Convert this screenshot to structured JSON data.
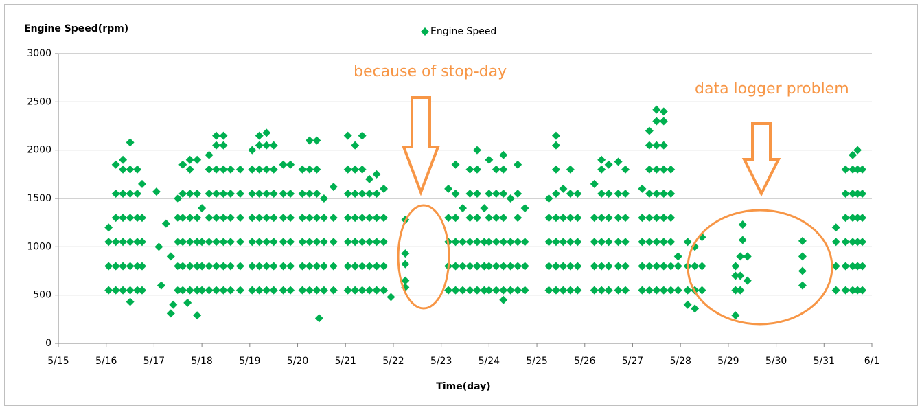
{
  "chart_data": {
    "type": "scatter",
    "y_label": "Engine Speed(rpm)",
    "x_label": "Time(day)",
    "annotations": [
      "because of stop-day",
      "data logger problem"
    ],
    "legend": "top",
    "grid": true,
    "xlim": [
      0,
      17
    ],
    "xticks": [
      {
        "value": 0,
        "label": "5/15"
      },
      {
        "value": 1,
        "label": "5/16"
      },
      {
        "value": 2,
        "label": "5/17"
      },
      {
        "value": 3,
        "label": "5/18"
      },
      {
        "value": 4,
        "label": "5/19"
      },
      {
        "value": 5,
        "label": "5/20"
      },
      {
        "value": 6,
        "label": "5/21"
      },
      {
        "value": 7,
        "label": "5/22"
      },
      {
        "value": 8,
        "label": "5/23"
      },
      {
        "value": 9,
        "label": "5/24"
      },
      {
        "value": 10,
        "label": "5/25"
      },
      {
        "value": 11,
        "label": "5/26"
      },
      {
        "value": 12,
        "label": "5/27"
      },
      {
        "value": 13,
        "label": "5/28"
      },
      {
        "value": 14,
        "label": "5/29"
      },
      {
        "value": 15,
        "label": "5/30"
      },
      {
        "value": 16,
        "label": "5/31"
      },
      {
        "value": 17,
        "label": "6/1"
      }
    ],
    "ylim": [
      0,
      3000
    ],
    "yticks": [
      0,
      500,
      1000,
      1500,
      2000,
      2500,
      3000
    ],
    "x": [
      1.05,
      1.05,
      1.05,
      1.05,
      1.2,
      1.2,
      1.2,
      1.2,
      1.2,
      1.2,
      1.35,
      1.35,
      1.35,
      1.35,
      1.35,
      1.35,
      1.35,
      1.5,
      1.5,
      1.5,
      1.5,
      1.5,
      1.5,
      1.5,
      1.5,
      1.65,
      1.65,
      1.65,
      1.65,
      1.65,
      1.65,
      1.75,
      1.75,
      1.75,
      1.75,
      1.75,
      2.05,
      2.1,
      2.25,
      2.15,
      2.35,
      2.4,
      2.35,
      2.7,
      2.9,
      2.5,
      2.5,
      2.5,
      2.5,
      2.5,
      2.6,
      2.6,
      2.6,
      2.6,
      2.6,
      2.6,
      2.75,
      2.75,
      2.75,
      2.75,
      2.75,
      2.75,
      2.75,
      2.9,
      2.9,
      2.9,
      2.9,
      2.9,
      2.9,
      3.0,
      3.0,
      3.0,
      3.0,
      3.15,
      3.15,
      3.15,
      3.15,
      3.15,
      3.15,
      3.15,
      3.3,
      3.3,
      3.3,
      3.3,
      3.3,
      3.3,
      3.3,
      3.3,
      3.45,
      3.45,
      3.45,
      3.45,
      3.45,
      3.45,
      3.45,
      3.45,
      3.6,
      3.6,
      3.6,
      3.6,
      3.6,
      3.6,
      3.8,
      3.8,
      3.8,
      3.8,
      3.8,
      3.8,
      4.05,
      4.05,
      4.05,
      4.05,
      4.05,
      4.05,
      4.05,
      4.2,
      4.2,
      4.2,
      4.2,
      4.2,
      4.2,
      4.2,
      4.2,
      4.35,
      4.35,
      4.35,
      4.35,
      4.35,
      4.35,
      4.35,
      4.35,
      4.5,
      4.5,
      4.5,
      4.5,
      4.5,
      4.5,
      4.5,
      4.7,
      4.7,
      4.7,
      4.7,
      4.7,
      4.7,
      4.85,
      4.85,
      4.85,
      4.85,
      4.85,
      4.85,
      5.1,
      5.1,
      5.1,
      5.1,
      5.1,
      5.1,
      5.25,
      5.25,
      5.25,
      5.25,
      5.25,
      5.25,
      5.25,
      5.4,
      5.4,
      5.4,
      5.4,
      5.4,
      5.4,
      5.4,
      5.45,
      5.55,
      5.55,
      5.55,
      5.55,
      5.55,
      5.75,
      5.75,
      5.75,
      5.75,
      5.75,
      6.05,
      6.05,
      6.05,
      6.05,
      6.05,
      6.05,
      6.05,
      6.2,
      6.2,
      6.2,
      6.2,
      6.2,
      6.2,
      6.2,
      6.35,
      6.35,
      6.35,
      6.35,
      6.35,
      6.35,
      6.35,
      6.5,
      6.5,
      6.5,
      6.5,
      6.5,
      6.5,
      6.65,
      6.65,
      6.65,
      6.65,
      6.65,
      6.65,
      6.8,
      6.8,
      6.8,
      6.8,
      6.8,
      6.95,
      7.25,
      7.25,
      7.25,
      7.25,
      7.25,
      8.15,
      8.15,
      8.15,
      8.15,
      8.15,
      8.3,
      8.3,
      8.3,
      8.3,
      8.3,
      8.3,
      8.45,
      8.45,
      8.45,
      8.45,
      8.6,
      8.6,
      8.6,
      8.6,
      8.6,
      8.6,
      8.75,
      8.75,
      8.75,
      8.75,
      8.75,
      8.75,
      8.75,
      8.9,
      8.9,
      8.9,
      8.9,
      9.0,
      9.0,
      9.0,
      9.0,
      9.0,
      9.0,
      9.15,
      9.15,
      9.15,
      9.15,
      9.15,
      9.15,
      9.3,
      9.3,
      9.3,
      9.3,
      9.3,
      9.3,
      9.3,
      9.3,
      9.45,
      9.45,
      9.45,
      9.45,
      9.6,
      9.6,
      9.6,
      9.6,
      9.6,
      9.6,
      9.75,
      9.75,
      9.75,
      9.75,
      10.25,
      10.25,
      10.25,
      10.25,
      10.25,
      10.4,
      10.4,
      10.4,
      10.4,
      10.4,
      10.4,
      10.4,
      10.4,
      10.55,
      10.55,
      10.55,
      10.55,
      10.55,
      10.7,
      10.7,
      10.7,
      10.7,
      10.7,
      10.7,
      10.85,
      10.85,
      10.85,
      10.85,
      10.85,
      11.2,
      11.2,
      11.2,
      11.2,
      11.2,
      11.35,
      11.35,
      11.35,
      11.35,
      11.35,
      11.35,
      11.35,
      11.5,
      11.5,
      11.5,
      11.5,
      11.5,
      11.5,
      11.7,
      11.7,
      11.7,
      11.7,
      11.7,
      11.7,
      11.85,
      11.85,
      11.85,
      11.85,
      11.85,
      11.85,
      12.2,
      12.2,
      12.2,
      12.2,
      12.2,
      12.35,
      12.35,
      12.35,
      12.35,
      12.35,
      12.35,
      12.35,
      12.35,
      12.5,
      12.5,
      12.5,
      12.5,
      12.5,
      12.5,
      12.5,
      12.5,
      12.5,
      12.65,
      12.65,
      12.65,
      12.65,
      12.65,
      12.65,
      12.65,
      12.65,
      12.65,
      12.8,
      12.8,
      12.8,
      12.8,
      12.8,
      12.8,
      12.95,
      12.95,
      12.95,
      13.15,
      13.15,
      13.15,
      13.15,
      13.3,
      13.3,
      13.3,
      13.3,
      13.45,
      13.45,
      13.45,
      14.15,
      14.15,
      14.15,
      14.15,
      14.25,
      14.25,
      14.25,
      14.3,
      14.3,
      14.4,
      14.4,
      15.55,
      15.55,
      15.55,
      15.55,
      16.25,
      16.25,
      16.25,
      16.25,
      16.45,
      16.45,
      16.45,
      16.45,
      16.45,
      16.45,
      16.6,
      16.6,
      16.6,
      16.6,
      16.6,
      16.6,
      16.6,
      16.7,
      16.7,
      16.7,
      16.7,
      16.7,
      16.7,
      16.7,
      16.8,
      16.8,
      16.8,
      16.8,
      16.8,
      16.8
    ],
    "series": [
      {
        "name": "Engine Speed",
        "color": "#00b050",
        "values": [
          550,
          800,
          1050,
          1200,
          550,
          800,
          1050,
          1300,
          1550,
          1850,
          550,
          800,
          1050,
          1300,
          1550,
          1800,
          1900,
          430,
          550,
          800,
          1050,
          1300,
          1550,
          1800,
          2080,
          550,
          800,
          1050,
          1300,
          1550,
          1800,
          550,
          800,
          1050,
          1300,
          1650,
          1570,
          1000,
          1240,
          600,
          900,
          400,
          310,
          420,
          290,
          550,
          800,
          1050,
          1300,
          1500,
          550,
          800,
          1050,
          1300,
          1550,
          1850,
          550,
          800,
          1050,
          1300,
          1550,
          1800,
          1900,
          550,
          800,
          1050,
          1300,
          1550,
          1900,
          550,
          800,
          1050,
          1400,
          550,
          800,
          1050,
          1300,
          1550,
          1800,
          1950,
          550,
          800,
          1050,
          1300,
          1550,
          1800,
          2050,
          2150,
          550,
          800,
          1050,
          1300,
          1550,
          1800,
          2050,
          2150,
          550,
          800,
          1050,
          1300,
          1550,
          1800,
          550,
          800,
          1050,
          1300,
          1550,
          1800,
          550,
          800,
          1050,
          1300,
          1550,
          1800,
          2000,
          550,
          800,
          1050,
          1300,
          1550,
          1800,
          2050,
          2150,
          550,
          800,
          1050,
          1300,
          1550,
          1800,
          2050,
          2180,
          550,
          800,
          1050,
          1300,
          1550,
          1800,
          2050,
          550,
          800,
          1050,
          1300,
          1550,
          1850,
          550,
          800,
          1050,
          1300,
          1550,
          1850,
          550,
          800,
          1050,
          1300,
          1550,
          1800,
          550,
          800,
          1050,
          1300,
          1550,
          1800,
          2100,
          550,
          800,
          1050,
          1300,
          1550,
          1800,
          2100,
          260,
          550,
          800,
          1050,
          1300,
          1500,
          550,
          800,
          1050,
          1300,
          1620,
          550,
          800,
          1050,
          1300,
          1550,
          1800,
          2150,
          550,
          800,
          1050,
          1300,
          1550,
          1800,
          2050,
          550,
          800,
          1050,
          1300,
          1550,
          1800,
          2150,
          550,
          800,
          1050,
          1300,
          1550,
          1700,
          550,
          800,
          1050,
          1300,
          1550,
          1750,
          550,
          800,
          1050,
          1300,
          1600,
          480,
          580,
          650,
          820,
          930,
          1280,
          550,
          800,
          1050,
          1300,
          1600,
          550,
          800,
          1050,
          1300,
          1550,
          1850,
          550,
          800,
          1050,
          1400,
          550,
          800,
          1050,
          1300,
          1550,
          1800,
          550,
          800,
          1050,
          1300,
          1550,
          1800,
          2000,
          550,
          800,
          1050,
          1400,
          550,
          800,
          1050,
          1300,
          1550,
          1900,
          550,
          800,
          1050,
          1300,
          1550,
          1800,
          450,
          550,
          800,
          1050,
          1300,
          1550,
          1800,
          1950,
          550,
          800,
          1050,
          1500,
          550,
          800,
          1050,
          1300,
          1550,
          1850,
          550,
          800,
          1050,
          1400,
          550,
          800,
          1050,
          1300,
          1500,
          550,
          800,
          1050,
          1300,
          1550,
          1800,
          2050,
          2150,
          550,
          800,
          1050,
          1300,
          1600,
          550,
          800,
          1050,
          1300,
          1550,
          1800,
          550,
          800,
          1050,
          1300,
          1550,
          550,
          800,
          1050,
          1300,
          1650,
          550,
          800,
          1050,
          1300,
          1550,
          1800,
          1900,
          550,
          800,
          1050,
          1300,
          1550,
          1850,
          550,
          800,
          1050,
          1300,
          1550,
          1880,
          550,
          800,
          1050,
          1300,
          1550,
          1800,
          550,
          800,
          1050,
          1300,
          1600,
          550,
          800,
          1050,
          1300,
          1550,
          1800,
          2050,
          2200,
          550,
          800,
          1050,
          1300,
          1550,
          1800,
          2050,
          2300,
          2420,
          550,
          800,
          1050,
          1300,
          1550,
          1800,
          2050,
          2300,
          2400,
          550,
          800,
          1050,
          1300,
          1550,
          1800,
          550,
          800,
          900,
          400,
          550,
          800,
          1050,
          360,
          550,
          800,
          1000,
          550,
          800,
          1100,
          290,
          550,
          700,
          800,
          550,
          700,
          900,
          1070,
          1230,
          650,
          900,
          600,
          750,
          900,
          1060,
          550,
          800,
          1050,
          1200,
          550,
          800,
          1050,
          1300,
          1550,
          1800,
          550,
          800,
          1050,
          1300,
          1550,
          1800,
          1950,
          550,
          800,
          1050,
          1300,
          1550,
          1800,
          2000,
          550,
          800,
          1050,
          1300,
          1550,
          1800
        ]
      }
    ]
  }
}
